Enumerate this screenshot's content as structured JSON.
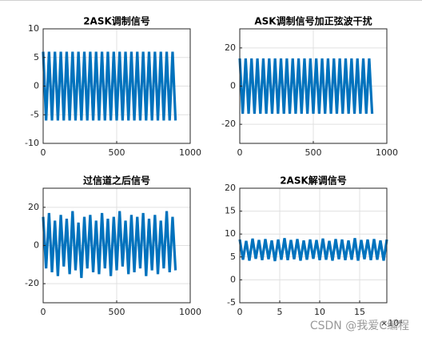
{
  "chart_data": [
    {
      "type": "line",
      "title": "2ASK调制信号",
      "color": "#0072bd",
      "grid": true,
      "x": [
        0,
        20,
        40,
        60,
        80,
        100,
        120,
        140,
        160,
        180,
        200,
        220,
        240,
        260,
        280,
        300,
        320,
        340,
        360,
        380,
        400,
        420,
        440,
        460,
        480,
        500,
        520,
        540,
        560,
        580,
        600,
        620,
        640,
        660,
        680,
        700,
        720,
        740,
        760,
        780,
        800,
        820,
        840,
        860,
        880,
        900
      ],
      "values": [
        6,
        -6,
        6,
        -6,
        6,
        -6,
        6,
        -6,
        6,
        -6,
        6,
        -6,
        6,
        -6,
        6,
        -6,
        6,
        -6,
        6,
        -6,
        6,
        -6,
        6,
        -6,
        6,
        -6,
        6,
        -6,
        6,
        -6,
        6,
        -6,
        6,
        -6,
        6,
        -6,
        6,
        -6,
        6,
        -6,
        6,
        -6,
        6,
        -6,
        6,
        -6
      ],
      "xlim": [
        0,
        1000
      ],
      "xticks": [
        0,
        500,
        1000
      ],
      "ylim": [
        -10,
        10
      ],
      "yticks": [
        -10,
        -5,
        0,
        5,
        10
      ]
    },
    {
      "type": "line",
      "title": "ASK调制信号加正弦波干扰",
      "color": "#0072bd",
      "grid": true,
      "x": [
        0,
        20,
        40,
        60,
        80,
        100,
        120,
        140,
        160,
        180,
        200,
        220,
        240,
        260,
        280,
        300,
        320,
        340,
        360,
        380,
        400,
        420,
        440,
        460,
        480,
        500,
        520,
        540,
        560,
        580,
        600,
        620,
        640,
        660,
        680,
        700,
        720,
        740,
        760,
        780,
        800,
        820,
        840,
        860,
        880,
        900
      ],
      "values": [
        14.5,
        -14.5,
        14.5,
        -14.5,
        14.5,
        -14.5,
        14.5,
        -14.5,
        14.5,
        -14.5,
        14.5,
        -14.5,
        14.5,
        -14.5,
        14.5,
        -14.5,
        14.5,
        -14.5,
        14.5,
        -14.5,
        14.5,
        -14.5,
        14.5,
        -14.5,
        14.5,
        -14.5,
        14.5,
        -14.5,
        14.5,
        -14.5,
        14.5,
        -14.5,
        14.5,
        -14.5,
        14.5,
        -14.5,
        14.5,
        -14.5,
        14.5,
        -14.5,
        14.5,
        -14.5,
        14.5,
        -14.5,
        14.5,
        -14.5
      ],
      "xlim": [
        0,
        1000
      ],
      "xticks": [
        0,
        500,
        1000
      ],
      "ylim": [
        -30,
        30
      ],
      "yticks": [
        -20,
        0,
        20
      ]
    },
    {
      "type": "line",
      "title": "过信道之后信号",
      "color": "#0072bd",
      "grid": true,
      "x": [
        0,
        20,
        40,
        60,
        80,
        100,
        120,
        140,
        160,
        180,
        200,
        220,
        240,
        260,
        280,
        300,
        320,
        340,
        360,
        380,
        400,
        420,
        440,
        460,
        480,
        500,
        520,
        540,
        560,
        580,
        600,
        620,
        640,
        660,
        680,
        700,
        720,
        740,
        760,
        780,
        800,
        820,
        840,
        860,
        880,
        900
      ],
      "values": [
        15,
        -12,
        17,
        -14,
        13,
        -16,
        16,
        -11,
        14,
        -15,
        18,
        -13,
        12,
        -17,
        15,
        -12,
        16,
        -14,
        13,
        -15,
        17,
        -12,
        14,
        -16,
        15,
        -13,
        18,
        -11,
        13,
        -15,
        16,
        -14,
        15,
        -12,
        17,
        -16,
        14,
        -13,
        16,
        -15,
        13,
        -12,
        18,
        -14,
        15,
        -13
      ],
      "xlim": [
        0,
        1000
      ],
      "xticks": [
        0,
        500,
        1000
      ],
      "ylim": [
        -30,
        30
      ],
      "yticks": [
        -20,
        0,
        20
      ]
    },
    {
      "type": "line",
      "title": "2ASK解调信号",
      "color": "#0072bd",
      "grid": true,
      "x_exponent": "×10⁴",
      "x": [
        0,
        0.4,
        0.8,
        1.2,
        1.6,
        2,
        2.4,
        2.8,
        3.2,
        3.6,
        4,
        4.4,
        4.8,
        5.2,
        5.6,
        6,
        6.4,
        6.8,
        7.2,
        7.6,
        8,
        8.4,
        8.8,
        9.2,
        9.6,
        10,
        10.4,
        10.8,
        11.2,
        11.6,
        12,
        12.4,
        12.8,
        13.2,
        13.6,
        14,
        14.4,
        14.8,
        15.2,
        15.6,
        16,
        16.4,
        16.8,
        17.2,
        17.6,
        18,
        18.4
      ],
      "values": [
        8.8,
        4.4,
        8.5,
        4.2,
        9,
        4.6,
        8.7,
        4.3,
        8.9,
        4.5,
        8.6,
        4.1,
        8.8,
        4.4,
        9.1,
        4.3,
        8.7,
        4.5,
        8.9,
        4.2,
        8.6,
        4.4,
        8.8,
        4.6,
        8.7,
        4.3,
        9,
        4.4,
        8.5,
        4.2,
        8.9,
        4.5,
        8.8,
        4.3,
        8.6,
        4.4,
        9.1,
        4.2,
        8.7,
        4.5,
        8.8,
        4.3,
        8.9,
        4.4,
        8.6,
        4.2,
        8.8
      ],
      "xlim": [
        0,
        18.4
      ],
      "xticks": [
        0,
        5,
        10,
        15
      ],
      "ylim": [
        -5,
        20
      ],
      "yticks": [
        -5,
        0,
        5,
        10,
        15,
        20
      ]
    }
  ],
  "watermark": "CSDN @我爱C编程"
}
